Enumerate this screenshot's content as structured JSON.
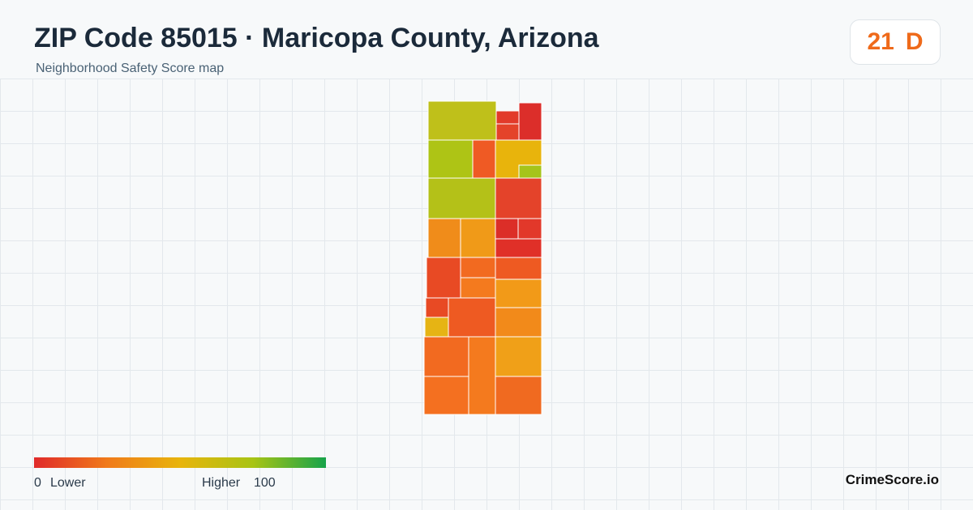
{
  "header": {
    "title": "ZIP Code 85015 · Maricopa County, Arizona",
    "subtitle": "Neighborhood Safety Score map"
  },
  "score": {
    "value": 21,
    "grade": "D"
  },
  "legend": {
    "min": 0,
    "min_label": "Lower",
    "max_label": "Higher",
    "max": 100
  },
  "brand": "CrimeScore.io"
}
